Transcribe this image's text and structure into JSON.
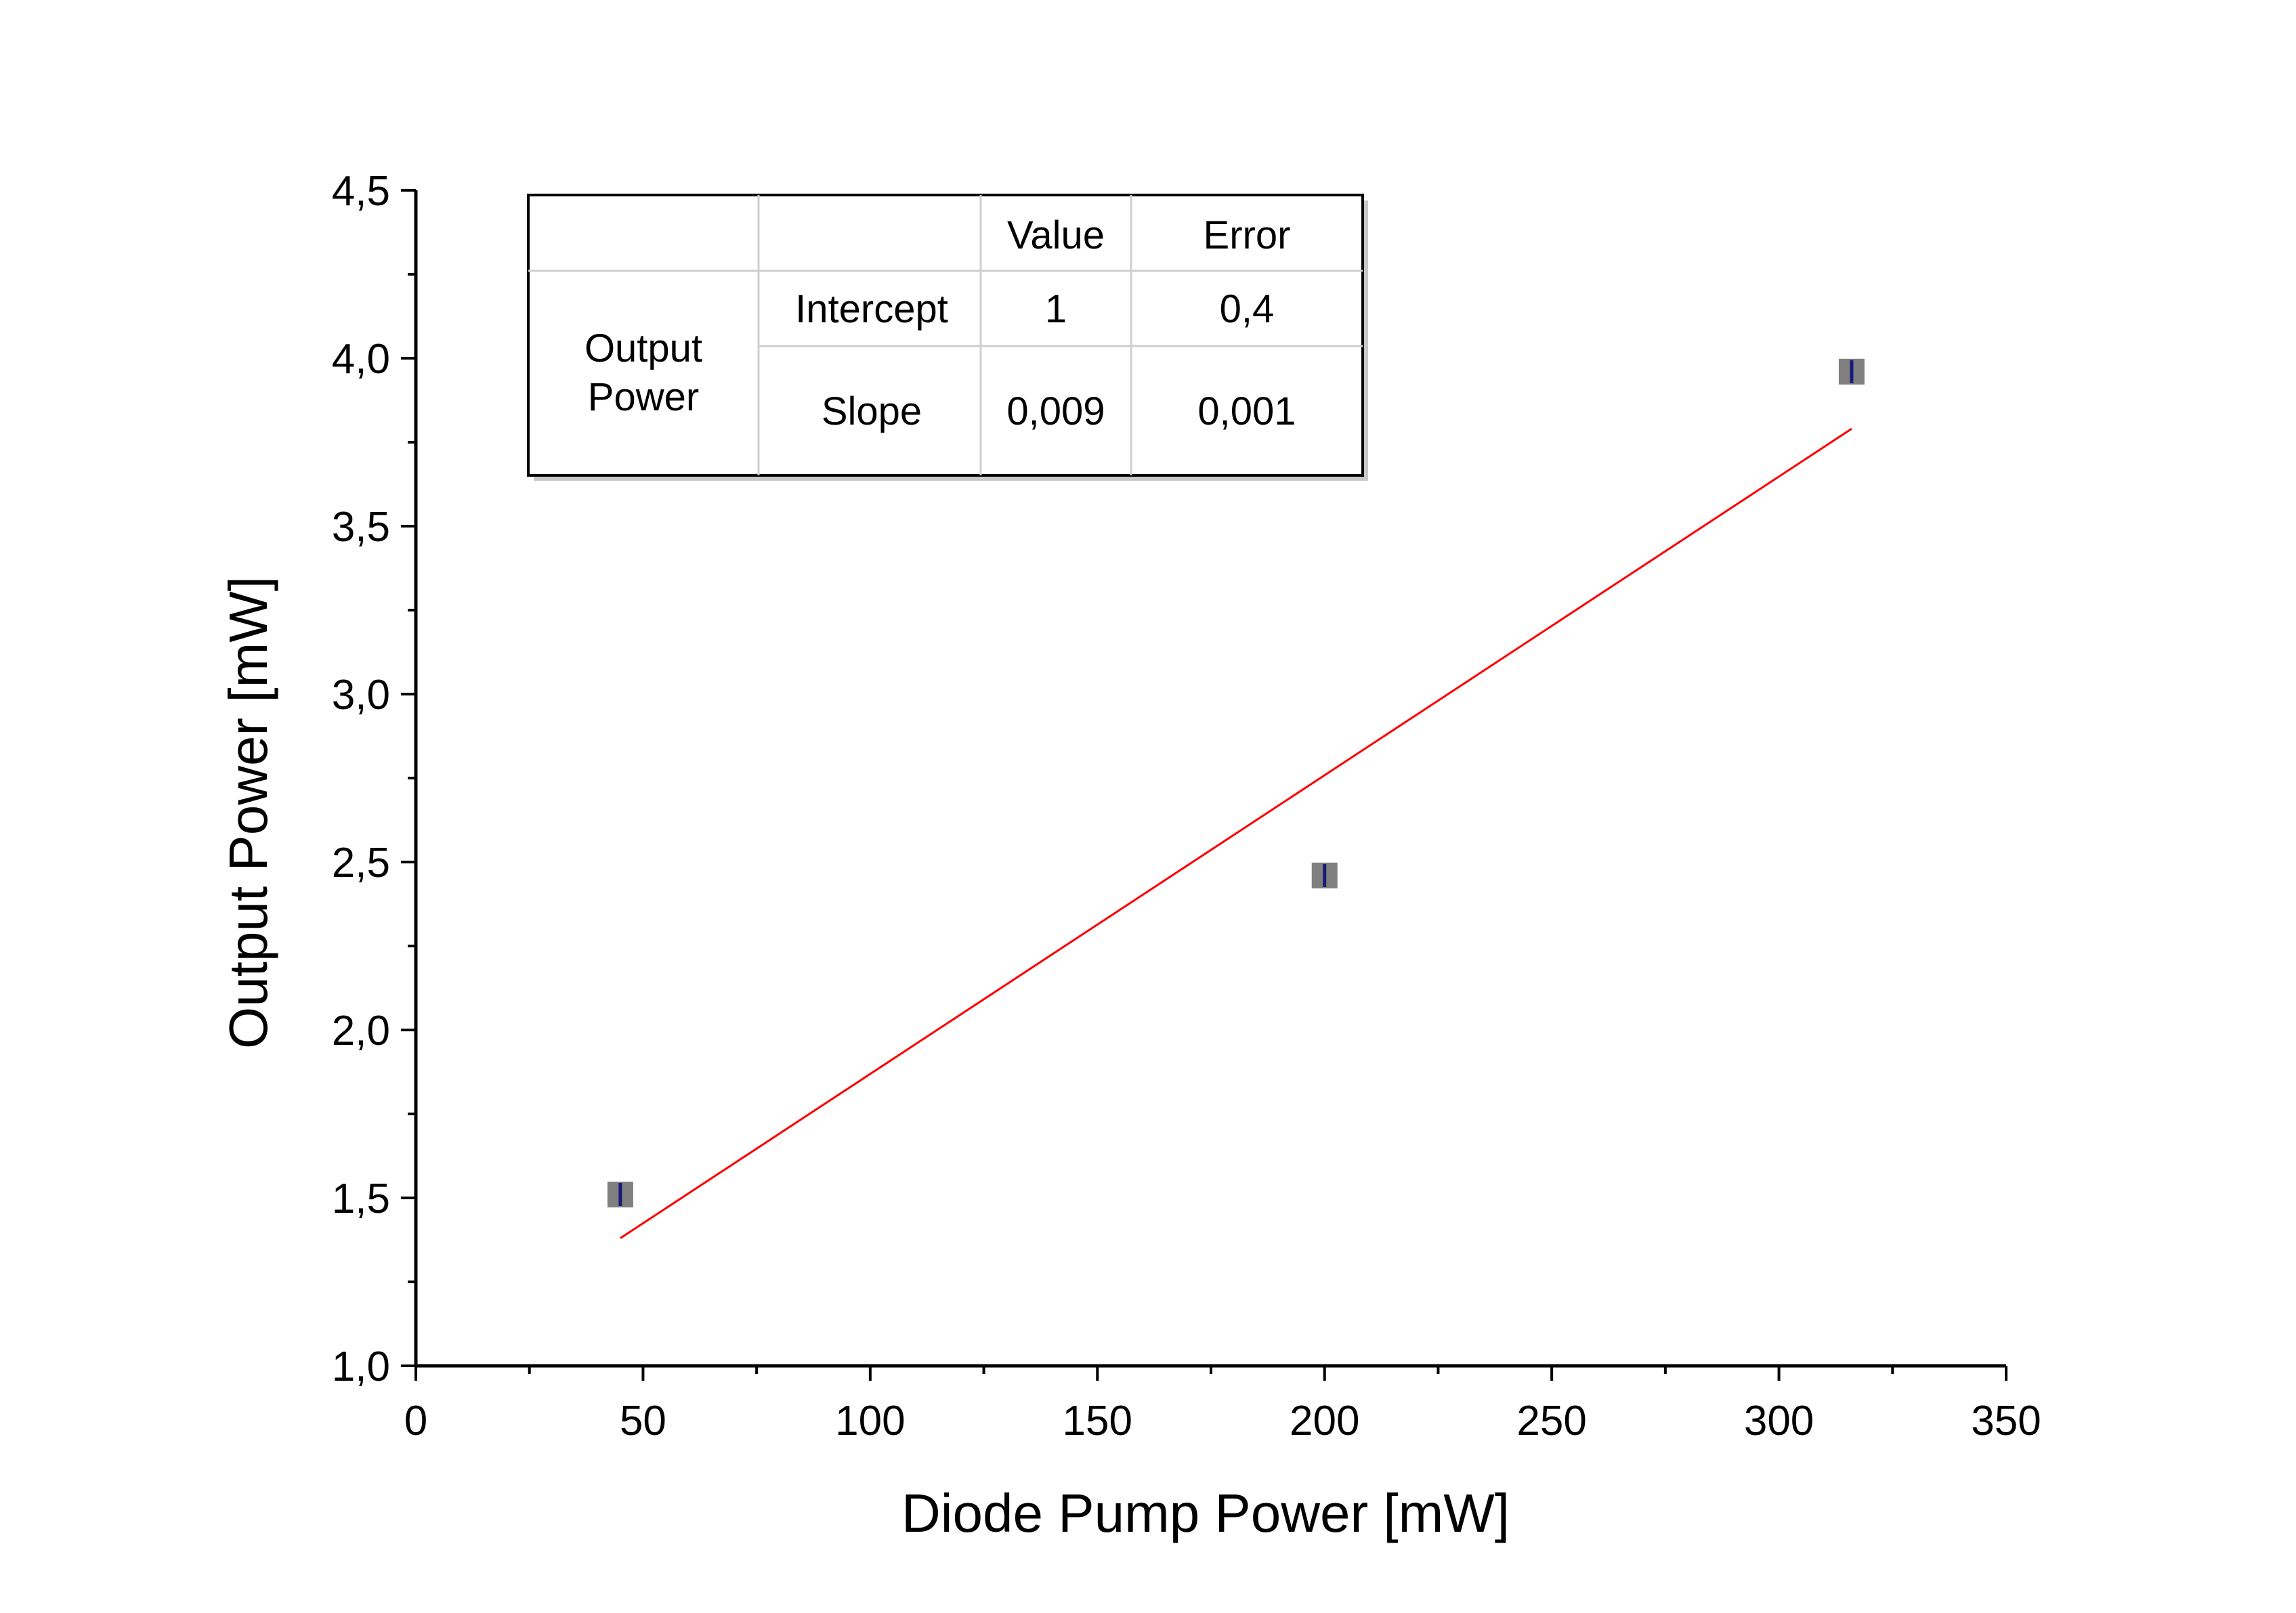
{
  "chart_data": {
    "type": "scatter",
    "xlabel": "Diode Pump Power [mW]",
    "ylabel": "Output Power [mW]",
    "xlim": [
      0,
      350
    ],
    "ylim": [
      1.0,
      4.5
    ],
    "x_ticks": [
      "0",
      "50",
      "100",
      "150",
      "200",
      "250",
      "300",
      "350"
    ],
    "x_tick_values": [
      0,
      50,
      100,
      150,
      200,
      250,
      300,
      350
    ],
    "y_ticks": [
      "1,0",
      "1,5",
      "2,0",
      "2,5",
      "3,0",
      "3,5",
      "4,0",
      "4,5"
    ],
    "y_tick_values": [
      1.0,
      1.5,
      2.0,
      2.5,
      3.0,
      3.5,
      4.0,
      4.5
    ],
    "series": [
      {
        "x": [
          45,
          200,
          316
        ],
        "y": [
          1.51,
          2.46,
          3.96
        ]
      }
    ],
    "fit_line": {
      "x": [
        45,
        316
      ],
      "y": [
        1.38,
        3.79
      ]
    },
    "colors": {
      "points": "#808080",
      "error_bar": "#1a1a7a",
      "fit": "#ff0000",
      "axis": "#000000"
    },
    "grid": false,
    "fit_table": {
      "header": [
        "",
        "",
        "Value",
        "Error"
      ],
      "group_label": "Output Power",
      "rows": [
        {
          "param": "Intercept",
          "value": "1",
          "error": "0,4"
        },
        {
          "param": "Slope",
          "value": "0,009",
          "error": "0,001"
        }
      ]
    }
  }
}
